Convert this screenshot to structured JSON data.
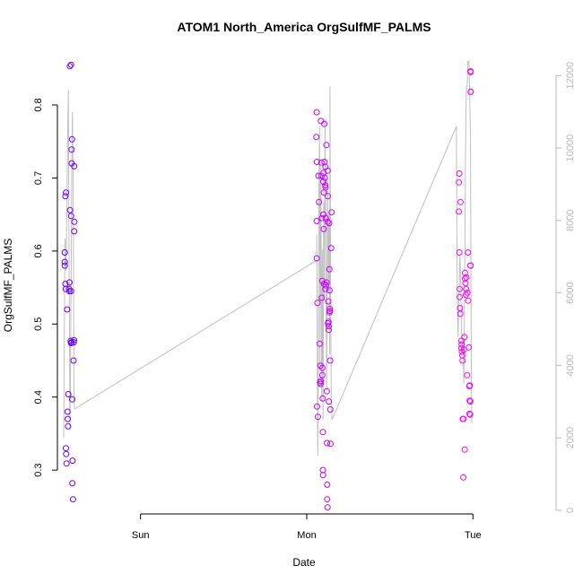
{
  "chart_data": {
    "type": "scatter",
    "title": "ATOM1 North_America OrgSulfMF_PALMS",
    "xlabel": "Date",
    "ylabel": "OrgSulfMF_PALMS",
    "xlim": [
      0,
      3
    ],
    "ylim": [
      0.24,
      0.87
    ],
    "x_ticks": [
      {
        "value": 0.5,
        "label": "Sun"
      },
      {
        "value": 1.5,
        "label": "Mon"
      },
      {
        "value": 2.5,
        "label": "Tue"
      }
    ],
    "y_ticks": [
      0.3,
      0.4,
      0.5,
      0.6,
      0.7,
      0.8
    ],
    "right_axis": {
      "ylim": [
        -100,
        12600
      ],
      "ticks": [
        0,
        2000,
        4000,
        6000,
        8000,
        10000,
        12000
      ],
      "color": "#b8b8b8"
    },
    "colors": {
      "point_start": "#6a00ff",
      "point_end": "#ff00ff",
      "line": "#c0c0c0",
      "axis": "#000000"
    },
    "grid": false,
    "points": [
      [
        0.059,
        0.52
      ],
      [
        0.048,
        0.675
      ],
      [
        0.052,
        0.68
      ],
      [
        0.044,
        0.58
      ],
      [
        0.044,
        0.585
      ],
      [
        0.044,
        0.598
      ],
      [
        0.048,
        0.555
      ],
      [
        0.05,
        0.548
      ],
      [
        0.051,
        0.33
      ],
      [
        0.053,
        0.322
      ],
      [
        0.055,
        0.309
      ],
      [
        0.061,
        0.38
      ],
      [
        0.064,
        0.36
      ],
      [
        0.062,
        0.37
      ],
      [
        0.066,
        0.404
      ],
      [
        0.07,
        0.548
      ],
      [
        0.072,
        0.545
      ],
      [
        0.073,
        0.557
      ],
      [
        0.075,
        0.853
      ],
      [
        0.082,
        0.855
      ],
      [
        0.082,
        0.545
      ],
      [
        0.076,
        0.656
      ],
      [
        0.082,
        0.648
      ],
      [
        0.08,
        0.477
      ],
      [
        0.082,
        0.474
      ],
      [
        0.085,
        0.475
      ],
      [
        0.085,
        0.739
      ],
      [
        0.088,
        0.753
      ],
      [
        0.086,
        0.72
      ],
      [
        0.089,
        0.397
      ],
      [
        0.091,
        0.313
      ],
      [
        0.09,
        0.282
      ],
      [
        0.094,
        0.26
      ],
      [
        0.097,
        0.45
      ],
      [
        0.098,
        0.475
      ],
      [
        0.1,
        0.478
      ],
      [
        0.101,
        0.716
      ],
      [
        0.102,
        0.64
      ],
      [
        0.101,
        0.627
      ],
      [
        1.56,
        0.79
      ],
      [
        1.558,
        0.756
      ],
      [
        1.561,
        0.722
      ],
      [
        1.56,
        0.641
      ],
      [
        1.56,
        0.59
      ],
      [
        1.565,
        0.529
      ],
      [
        1.562,
        0.387
      ],
      [
        1.567,
        0.373
      ],
      [
        1.57,
        0.703
      ],
      [
        1.574,
        0.667
      ],
      [
        1.578,
        0.473
      ],
      [
        1.58,
        0.42
      ],
      [
        1.582,
        0.443
      ],
      [
        1.583,
        0.418
      ],
      [
        1.584,
        0.422
      ],
      [
        1.585,
        0.778
      ],
      [
        1.588,
        0.721
      ],
      [
        1.589,
        0.703
      ],
      [
        1.591,
        0.645
      ],
      [
        1.59,
        0.536
      ],
      [
        1.593,
        0.559
      ],
      [
        1.594,
        0.43
      ],
      [
        1.594,
        0.44
      ],
      [
        1.596,
        0.398
      ],
      [
        1.597,
        0.352
      ],
      [
        1.597,
        0.3
      ],
      [
        1.598,
        0.293
      ],
      [
        1.6,
        0.695
      ],
      [
        1.601,
        0.707
      ],
      [
        1.6,
        0.65
      ],
      [
        1.602,
        0.63
      ],
      [
        1.603,
        0.68
      ],
      [
        1.604,
        0.555
      ],
      [
        1.606,
        0.774
      ],
      [
        1.607,
        0.722
      ],
      [
        1.608,
        0.7
      ],
      [
        1.611,
        0.69
      ],
      [
        1.612,
        0.715
      ],
      [
        1.613,
        0.687
      ],
      [
        1.614,
        0.645
      ],
      [
        1.613,
        0.548
      ],
      [
        1.615,
        0.553
      ],
      [
        1.618,
        0.745
      ],
      [
        1.62,
        0.557
      ],
      [
        1.621,
        0.408
      ],
      [
        1.622,
        0.337
      ],
      [
        1.623,
        0.28
      ],
      [
        1.623,
        0.26
      ],
      [
        1.625,
        0.249
      ],
      [
        1.626,
        0.64
      ],
      [
        1.626,
        0.71
      ],
      [
        1.627,
        0.675
      ],
      [
        1.628,
        0.501
      ],
      [
        1.63,
        0.531
      ],
      [
        1.631,
        0.503
      ],
      [
        1.632,
        0.497
      ],
      [
        1.632,
        0.492
      ],
      [
        1.633,
        0.394
      ],
      [
        1.635,
        0.638
      ],
      [
        1.636,
        0.575
      ],
      [
        1.637,
        0.546
      ],
      [
        1.637,
        0.516
      ],
      [
        1.638,
        0.521
      ],
      [
        1.64,
        0.518
      ],
      [
        1.641,
        0.45
      ],
      [
        1.643,
        0.336
      ],
      [
        1.642,
        0.383
      ],
      [
        1.647,
        0.604
      ],
      [
        1.65,
        0.653
      ],
      [
        2.415,
        0.694
      ],
      [
        2.418,
        0.706
      ],
      [
        2.415,
        0.654
      ],
      [
        2.418,
        0.598
      ],
      [
        2.42,
        0.548
      ],
      [
        2.42,
        0.537
      ],
      [
        2.422,
        0.522
      ],
      [
        2.424,
        0.514
      ],
      [
        2.425,
        0.667
      ],
      [
        2.43,
        0.477
      ],
      [
        2.432,
        0.472
      ],
      [
        2.43,
        0.467
      ],
      [
        2.433,
        0.462
      ],
      [
        2.436,
        0.457
      ],
      [
        2.437,
        0.45
      ],
      [
        2.439,
        0.37
      ],
      [
        2.442,
        0.29
      ],
      [
        2.442,
        0.37
      ],
      [
        2.446,
        0.465
      ],
      [
        2.448,
        0.482
      ],
      [
        2.452,
        0.562
      ],
      [
        2.452,
        0.57
      ],
      [
        2.45,
        0.328
      ],
      [
        2.455,
        0.556
      ],
      [
        2.457,
        0.54
      ],
      [
        2.459,
        0.548
      ],
      [
        2.46,
        0.564
      ],
      [
        2.465,
        0.43
      ],
      [
        2.466,
        0.543
      ],
      [
        2.47,
        0.598
      ],
      [
        2.471,
        0.532
      ],
      [
        2.475,
        0.468
      ],
      [
        2.478,
        0.415
      ],
      [
        2.48,
        0.395
      ],
      [
        2.479,
        0.377
      ],
      [
        2.481,
        0.416
      ],
      [
        2.483,
        0.376
      ],
      [
        2.484,
        0.394
      ],
      [
        2.484,
        0.58
      ],
      [
        2.485,
        0.58
      ],
      [
        2.485,
        0.846
      ],
      [
        2.486,
        0.845
      ],
      [
        2.486,
        0.818
      ],
      [
        2.487,
        0.818
      ]
    ],
    "line": [
      [
        0.038,
        2000
      ],
      [
        0.043,
        6000
      ],
      [
        0.046,
        7500
      ],
      [
        0.052,
        6600
      ],
      [
        0.058,
        8600
      ],
      [
        0.062,
        10500
      ],
      [
        0.066,
        11600
      ],
      [
        0.07,
        7000
      ],
      [
        0.073,
        5200
      ],
      [
        0.075,
        2200
      ],
      [
        0.078,
        3300
      ],
      [
        0.08,
        4800
      ],
      [
        0.083,
        6500
      ],
      [
        0.086,
        9200
      ],
      [
        0.09,
        11000
      ],
      [
        0.094,
        9500
      ],
      [
        0.097,
        6600
      ],
      [
        0.1,
        3000
      ],
      [
        0.104,
        2800
      ],
      [
        1.56,
        6900
      ],
      [
        1.56,
        7600
      ],
      [
        1.563,
        5000
      ],
      [
        1.566,
        1500
      ],
      [
        1.57,
        4000
      ],
      [
        1.573,
        8800
      ],
      [
        1.577,
        10600
      ],
      [
        1.58,
        4000
      ],
      [
        1.585,
        9500
      ],
      [
        1.59,
        3000
      ],
      [
        1.594,
        7200
      ],
      [
        1.598,
        2500
      ],
      [
        1.602,
        8500
      ],
      [
        1.606,
        5800
      ],
      [
        1.61,
        10800
      ],
      [
        1.615,
        7000
      ],
      [
        1.62,
        3300
      ],
      [
        1.625,
        9200
      ],
      [
        1.63,
        6000
      ],
      [
        1.634,
        8200
      ],
      [
        1.638,
        4300
      ],
      [
        1.64,
        11700
      ],
      [
        1.644,
        5500
      ],
      [
        1.648,
        3000
      ],
      [
        1.652,
        2500
      ],
      [
        2.4,
        10600
      ],
      [
        2.405,
        6200
      ],
      [
        2.41,
        4800
      ],
      [
        2.416,
        6000
      ],
      [
        2.42,
        7000
      ],
      [
        2.424,
        6800
      ],
      [
        2.43,
        5200
      ],
      [
        2.435,
        4400
      ],
      [
        2.44,
        4700
      ],
      [
        2.445,
        3500
      ],
      [
        2.45,
        6500
      ],
      [
        2.455,
        9800
      ],
      [
        2.46,
        11700
      ],
      [
        2.465,
        11700
      ],
      [
        2.47,
        12400
      ],
      [
        2.475,
        12400
      ],
      [
        2.48,
        11600
      ],
      [
        2.485,
        10200
      ],
      [
        2.488,
        6100
      ],
      [
        2.49,
        3800
      ],
      [
        2.493,
        2400
      ]
    ]
  }
}
